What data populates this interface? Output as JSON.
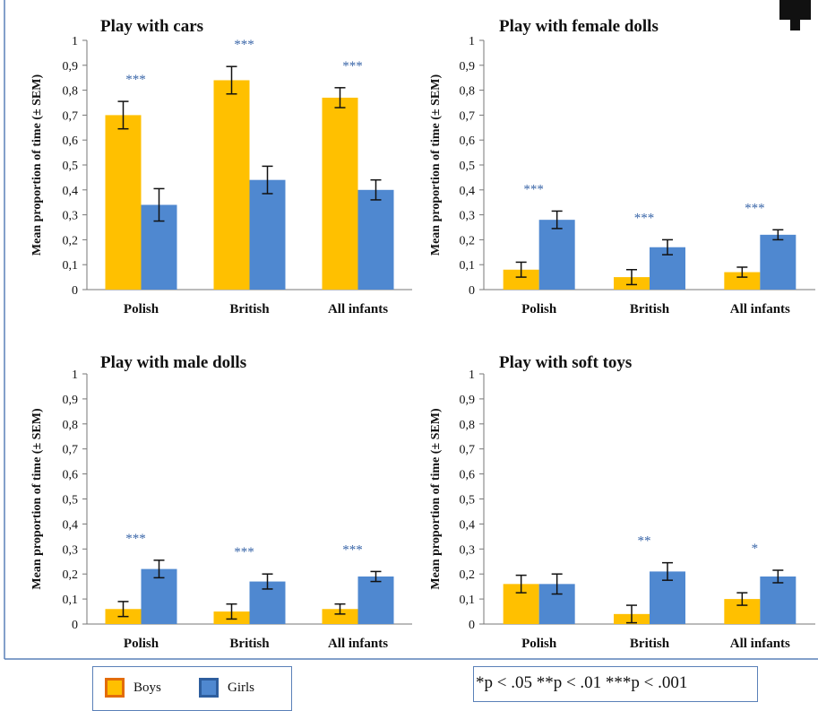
{
  "colors": {
    "boys": "#FFC000",
    "boys_border": "#E36C0A",
    "girls": "#4F88D0",
    "girls_border": "#2E5E9E",
    "frame_border": "#5A80B8",
    "stars": "#3A66A8"
  },
  "legend": {
    "boys_label": "Boys",
    "girls_label": "Girls"
  },
  "significance_note": "*p < .05 **p < .01 ***p < .001",
  "chart_data": [
    {
      "type": "bar",
      "title": "Play with cars",
      "ylabel": "Mean proportion of time (± SEM)",
      "ylim": [
        0,
        1
      ],
      "yticks": [
        "0",
        "0,1",
        "0,2",
        "0,3",
        "0,4",
        "0,5",
        "0,6",
        "0,7",
        "0,8",
        "0,9",
        "1"
      ],
      "categories": [
        "Polish",
        "British",
        "All infants"
      ],
      "series": [
        {
          "name": "Boys",
          "values": [
            0.7,
            0.84,
            0.77
          ],
          "sem": [
            0.055,
            0.055,
            0.04
          ]
        },
        {
          "name": "Girls",
          "values": [
            0.34,
            0.44,
            0.4
          ],
          "sem": [
            0.065,
            0.055,
            0.04
          ]
        }
      ],
      "annotations": [
        "***",
        "***",
        "***"
      ]
    },
    {
      "type": "bar",
      "title": "Play with female dolls",
      "ylabel": "Mean proportion of time (± SEM)",
      "ylim": [
        0,
        1
      ],
      "yticks": [
        "0",
        "0,1",
        "0,2",
        "0,3",
        "0,4",
        "0,5",
        "0,6",
        "0,7",
        "0,8",
        "0,9",
        "1"
      ],
      "categories": [
        "Polish",
        "British",
        "All infants"
      ],
      "series": [
        {
          "name": "Boys",
          "values": [
            0.08,
            0.05,
            0.07
          ],
          "sem": [
            0.03,
            0.03,
            0.02
          ]
        },
        {
          "name": "Girls",
          "values": [
            0.28,
            0.17,
            0.22
          ],
          "sem": [
            0.035,
            0.03,
            0.02
          ]
        }
      ],
      "annotations": [
        "***",
        "***",
        "***"
      ]
    },
    {
      "type": "bar",
      "title": "Play with male dolls",
      "ylabel": "Mean proportion of time (± SEM)",
      "ylim": [
        0,
        1
      ],
      "yticks": [
        "0",
        "0,1",
        "0,2",
        "0,3",
        "0,4",
        "0,5",
        "0,6",
        "0,7",
        "0,8",
        "0,9",
        "1"
      ],
      "categories": [
        "Polish",
        "British",
        "All infants"
      ],
      "series": [
        {
          "name": "Boys",
          "values": [
            0.06,
            0.05,
            0.06
          ],
          "sem": [
            0.03,
            0.03,
            0.02
          ]
        },
        {
          "name": "Girls",
          "values": [
            0.22,
            0.17,
            0.19
          ],
          "sem": [
            0.035,
            0.03,
            0.02
          ]
        }
      ],
      "annotations": [
        "***",
        "***",
        "***"
      ]
    },
    {
      "type": "bar",
      "title": "Play with soft toys",
      "ylabel": "Mean proportion of time (± SEM)",
      "ylim": [
        0,
        1
      ],
      "yticks": [
        "0",
        "0,1",
        "0,2",
        "0,3",
        "0,4",
        "0,5",
        "0,6",
        "0,7",
        "0,8",
        "0,9",
        "1"
      ],
      "categories": [
        "Polish",
        "British",
        "All infants"
      ],
      "series": [
        {
          "name": "Boys",
          "values": [
            0.16,
            0.04,
            0.1
          ],
          "sem": [
            0.035,
            0.035,
            0.025
          ]
        },
        {
          "name": "Girls",
          "values": [
            0.16,
            0.21,
            0.19
          ],
          "sem": [
            0.04,
            0.035,
            0.025
          ]
        }
      ],
      "annotations": [
        "",
        "**",
        "*"
      ]
    }
  ]
}
